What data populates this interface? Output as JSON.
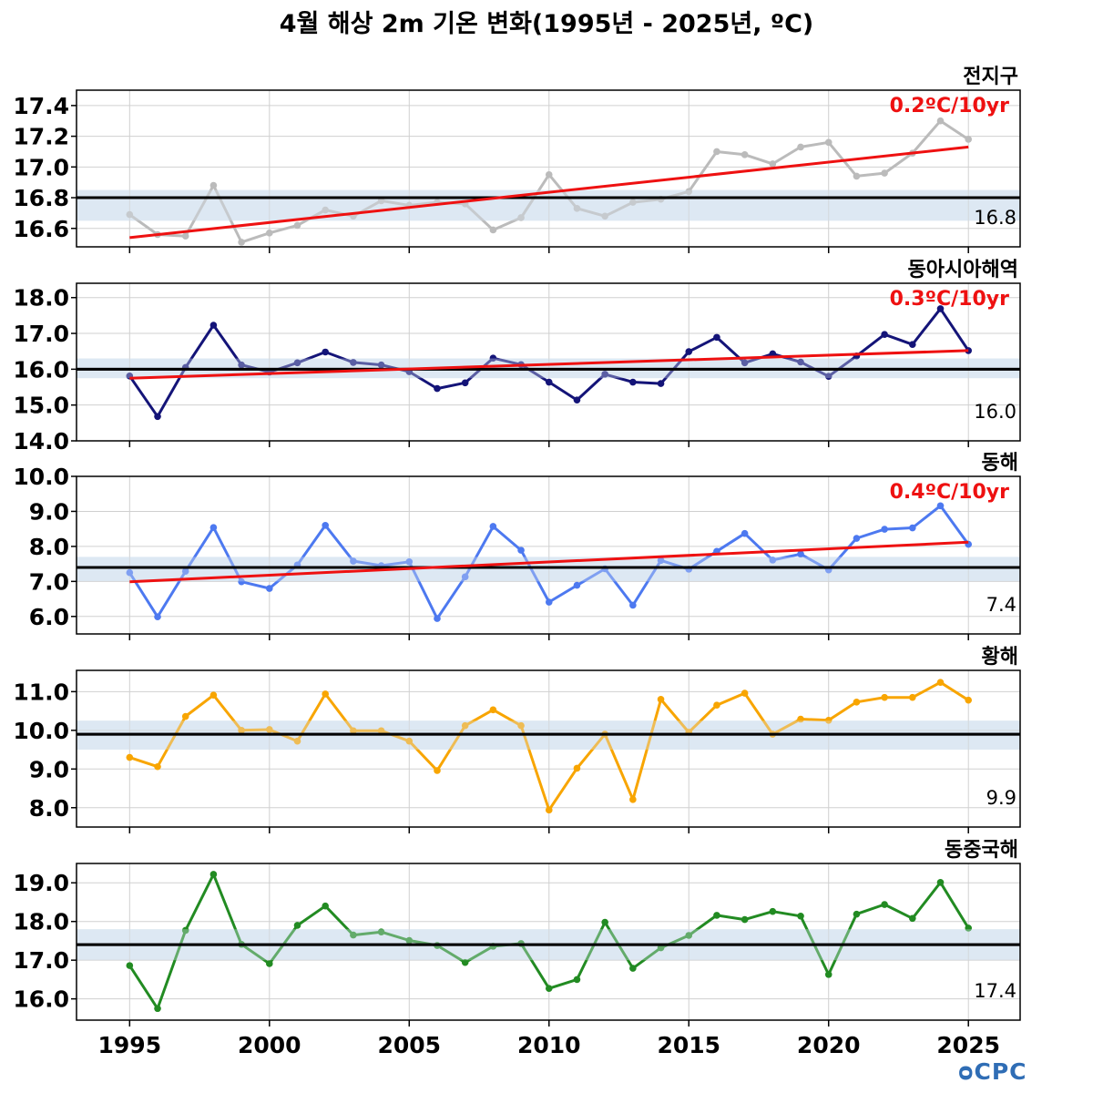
{
  "title": "4월 해상 2m 기온 변화(1995년 - 2025년, ºC)",
  "logo_text": "ᴑCPC",
  "colors": {
    "trend": "#ee1111",
    "mean_line": "#000000",
    "band": "#dde8f3",
    "grid": "#d0d0d0"
  },
  "chart_data": [
    {
      "type": "line",
      "title": "전지구",
      "trend_label": "0.2ºC/10yr",
      "mean_label": "16.8",
      "mean": 16.8,
      "band": [
        16.65,
        16.85
      ],
      "color": "#bbbbbb",
      "ylim": [
        16.48,
        17.5
      ],
      "yticks": [
        16.6,
        16.8,
        17.0,
        17.2,
        17.4
      ],
      "tick_labels": [
        "16.6",
        "16.8",
        "17.0",
        "17.2",
        "17.4"
      ],
      "trend": [
        16.54,
        17.13
      ],
      "x": [
        1995,
        1996,
        1997,
        1998,
        1999,
        2000,
        2001,
        2002,
        2003,
        2004,
        2005,
        2006,
        2007,
        2008,
        2009,
        2010,
        2011,
        2012,
        2013,
        2014,
        2015,
        2016,
        2017,
        2018,
        2019,
        2020,
        2021,
        2022,
        2023,
        2024,
        2025
      ],
      "values": [
        16.69,
        16.56,
        16.55,
        16.88,
        16.51,
        16.57,
        16.62,
        16.72,
        16.68,
        16.78,
        16.75,
        16.77,
        16.76,
        16.59,
        16.67,
        16.95,
        16.73,
        16.68,
        16.77,
        16.79,
        16.84,
        17.1,
        17.08,
        17.02,
        17.13,
        17.16,
        16.94,
        16.96,
        17.09,
        17.3,
        17.18
      ]
    },
    {
      "type": "line",
      "title": "동아시아해역",
      "trend_label": "0.3ºC/10yr",
      "mean_label": "16.0",
      "mean": 16.0,
      "band": [
        15.75,
        16.3
      ],
      "color": "#141478",
      "ylim": [
        14.0,
        18.4
      ],
      "yticks": [
        14.0,
        15.0,
        16.0,
        17.0,
        18.0
      ],
      "tick_labels": [
        "14.0",
        "15.0",
        "16.0",
        "17.0",
        "18.0"
      ],
      "trend": [
        15.75,
        16.52
      ],
      "x": [
        1995,
        1996,
        1997,
        1998,
        1999,
        2000,
        2001,
        2002,
        2003,
        2004,
        2005,
        2006,
        2007,
        2008,
        2009,
        2010,
        2011,
        2012,
        2013,
        2014,
        2015,
        2016,
        2017,
        2018,
        2019,
        2020,
        2021,
        2022,
        2023,
        2024,
        2025
      ],
      "values": [
        15.81,
        14.68,
        16.05,
        17.23,
        16.12,
        15.92,
        16.18,
        16.48,
        16.19,
        16.12,
        15.93,
        15.46,
        15.62,
        16.31,
        16.13,
        15.64,
        15.14,
        15.86,
        15.64,
        15.6,
        16.49,
        16.89,
        16.18,
        16.43,
        16.2,
        15.8,
        16.37,
        16.97,
        16.69,
        17.69,
        16.52
      ]
    },
    {
      "type": "line",
      "title": "동해",
      "trend_label": "0.4ºC/10yr",
      "mean_label": "7.4",
      "mean": 7.4,
      "band": [
        7.0,
        7.7
      ],
      "color": "#4d79f0",
      "ylim": [
        5.5,
        10.0
      ],
      "yticks": [
        6.0,
        7.0,
        8.0,
        9.0,
        10.0
      ],
      "tick_labels": [
        "6.0",
        "7.0",
        "8.0",
        "9.0",
        "10.0"
      ],
      "trend": [
        6.99,
        8.12
      ],
      "x": [
        1995,
        1996,
        1997,
        1998,
        1999,
        2000,
        2001,
        2002,
        2003,
        2004,
        2005,
        2006,
        2007,
        2008,
        2009,
        2010,
        2011,
        2012,
        2013,
        2014,
        2015,
        2016,
        2017,
        2018,
        2019,
        2020,
        2021,
        2022,
        2023,
        2024,
        2025
      ],
      "values": [
        7.25,
        5.99,
        7.29,
        8.54,
        6.99,
        6.8,
        7.47,
        8.6,
        7.58,
        7.45,
        7.56,
        5.94,
        7.13,
        8.57,
        7.89,
        6.41,
        6.89,
        7.36,
        6.32,
        7.6,
        7.35,
        7.86,
        8.37,
        7.61,
        7.78,
        7.33,
        8.23,
        8.49,
        8.53,
        9.16,
        8.06
      ]
    },
    {
      "type": "line",
      "title": "황해",
      "trend_label": "",
      "mean_label": "9.9",
      "mean": 9.9,
      "band": [
        9.5,
        10.25
      ],
      "color": "#f8a500",
      "ylim": [
        7.5,
        11.55
      ],
      "yticks": [
        8.0,
        9.0,
        10.0,
        11.0
      ],
      "tick_labels": [
        "8.0",
        "9.0",
        "10.0",
        "11.0"
      ],
      "trend": [],
      "x": [
        1995,
        1996,
        1997,
        1998,
        1999,
        2000,
        2001,
        2002,
        2003,
        2004,
        2005,
        2006,
        2007,
        2008,
        2009,
        2010,
        2011,
        2012,
        2013,
        2014,
        2015,
        2016,
        2017,
        2018,
        2019,
        2020,
        2021,
        2022,
        2023,
        2024,
        2025
      ],
      "values": [
        9.3,
        9.06,
        10.36,
        10.91,
        10.0,
        10.02,
        9.72,
        10.94,
        9.99,
        9.99,
        9.72,
        8.96,
        10.12,
        10.53,
        10.12,
        7.94,
        9.02,
        9.9,
        8.21,
        10.8,
        9.95,
        10.65,
        10.96,
        9.9,
        10.29,
        10.26,
        10.73,
        10.85,
        10.85,
        11.24,
        10.78
      ]
    },
    {
      "type": "line",
      "title": "동중국해",
      "trend_label": "",
      "mean_label": "17.4",
      "mean": 17.4,
      "band": [
        17.0,
        17.8
      ],
      "color": "#228b22",
      "ylim": [
        15.45,
        19.5
      ],
      "yticks": [
        16.0,
        17.0,
        18.0,
        19.0
      ],
      "tick_labels": [
        "16.0",
        "17.0",
        "18.0",
        "19.0"
      ],
      "trend": [],
      "x": [
        1995,
        1996,
        1997,
        1998,
        1999,
        2000,
        2001,
        2002,
        2003,
        2004,
        2005,
        2006,
        2007,
        2008,
        2009,
        2010,
        2011,
        2012,
        2013,
        2014,
        2015,
        2016,
        2017,
        2018,
        2019,
        2020,
        2021,
        2022,
        2023,
        2024,
        2025
      ],
      "values": [
        16.86,
        15.75,
        17.77,
        19.22,
        17.41,
        16.91,
        17.9,
        18.4,
        17.65,
        17.73,
        17.51,
        17.38,
        16.94,
        17.36,
        17.43,
        16.27,
        16.5,
        17.98,
        16.79,
        17.32,
        17.64,
        18.16,
        18.05,
        18.26,
        18.14,
        16.63,
        18.19,
        18.44,
        18.08,
        19.01,
        17.83
      ]
    }
  ],
  "xaxis": {
    "ticks": [
      1995,
      2000,
      2005,
      2010,
      2015,
      2020,
      2025
    ],
    "tick_labels": [
      "1995",
      "2000",
      "2005",
      "2010",
      "2015",
      "2020",
      "2025"
    ]
  }
}
